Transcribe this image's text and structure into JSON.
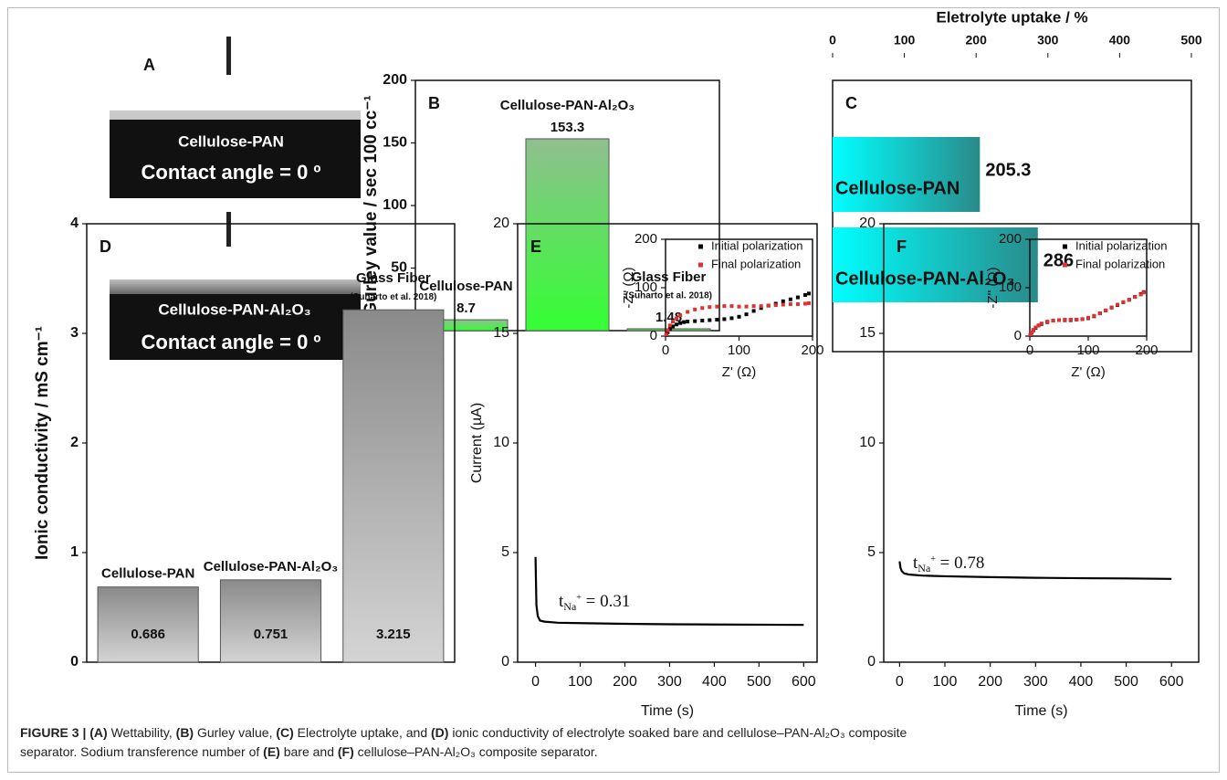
{
  "photo_panel": {
    "label": "A",
    "images": [
      {
        "title": "Cellulose-PAN",
        "subtitle": "Contact angle = 0 º"
      },
      {
        "title": "Cellulose-PAN-Al₂O₃",
        "subtitle": "Contact angle = 0 º"
      }
    ]
  },
  "chart_data": [
    {
      "type": "bar",
      "panel_label": "B",
      "ylabel": "Gurley value / sec 100 cc⁻¹",
      "categories": [
        [
          "Cellulose-PAN"
        ],
        [
          "Cellulose-PAN-Al₂O₃"
        ],
        [
          "Glass Fiber",
          "(Suharto et al. 2018)"
        ]
      ],
      "values": [
        8.7,
        153.3,
        1.48
      ],
      "ylim": [
        0,
        200
      ],
      "yticks": [
        0,
        50,
        100,
        150,
        200
      ],
      "gradient": [
        "#8fbf8f",
        "#33ff33"
      ]
    },
    {
      "type": "hbar",
      "panel_label": "C",
      "xlabel": "Eletrolyte uptake / %",
      "categories": [
        "Cellulose-PAN",
        "Cellulose-PAN-Al₂O₃"
      ],
      "values": [
        205.3,
        286
      ],
      "xlim": [
        0,
        500
      ],
      "xticks": [
        0,
        100,
        200,
        300,
        400,
        500
      ],
      "gradient": [
        "#00ffff",
        "#2a8a8a"
      ]
    },
    {
      "type": "bar",
      "panel_label": "D",
      "ylabel": "Ionic conductivity / mS cm⁻¹",
      "categories": [
        [
          "Cellulose-PAN"
        ],
        [
          "Cellulose-PAN-Al₂O₃"
        ],
        [
          "Glass Fiber",
          "(Suharto et al. 2018)"
        ]
      ],
      "values": [
        0.686,
        0.751,
        3.215
      ],
      "ylim": [
        0,
        4
      ],
      "yticks": [
        0,
        1,
        2,
        3,
        4
      ],
      "gradient": [
        "#8a8a8a",
        "#d4d4d4"
      ]
    },
    {
      "type": "line",
      "panel_label": "E",
      "xlabel": "Time (s)",
      "ylabel": "Current (µA)",
      "x": [
        0,
        2,
        5,
        10,
        20,
        50,
        100,
        200,
        300,
        400,
        500,
        600
      ],
      "series": [
        {
          "color": "#000000",
          "values": [
            4.8,
            2.6,
            2.1,
            1.9,
            1.85,
            1.8,
            1.78,
            1.75,
            1.73,
            1.72,
            1.71,
            1.7
          ]
        }
      ],
      "xlim": [
        -40,
        630
      ],
      "xticks": [
        0,
        100,
        200,
        300,
        400,
        500,
        600
      ],
      "ylim": [
        0,
        20
      ],
      "yticks": [
        0,
        5,
        10,
        15,
        20
      ],
      "annotation": [
        "t",
        "Na",
        "+",
        " = 0.31"
      ],
      "inset": {
        "type": "scatter",
        "xlabel": "Z' (Ω)",
        "ylabel": "-Z'' (Ω)",
        "xlim": [
          0,
          200
        ],
        "ylim": [
          0,
          200
        ],
        "xticks": [
          0,
          100,
          200
        ],
        "yticks": [
          0,
          100,
          200
        ],
        "series": [
          {
            "name": "Initial polarization",
            "color": "#000000",
            "x": [
              1,
              3,
              6,
              10,
              15,
              20,
              25,
              30,
              40,
              50,
              60,
              70,
              80,
              90,
              100,
              110,
              120,
              130,
              140,
              150,
              160,
              170,
              180,
              190,
              195
            ],
            "values": [
              2,
              8,
              15,
              20,
              24,
              27,
              29,
              30,
              31,
              32,
              33,
              34,
              35,
              37,
              40,
              45,
              52,
              58,
              63,
              67,
              72,
              76,
              80,
              85,
              88
            ]
          },
          {
            "name": "Final polarization",
            "color": "#e03030",
            "x": [
              1,
              3,
              6,
              10,
              15,
              20,
              30,
              40,
              50,
              60,
              70,
              80,
              90,
              100,
              110,
              120,
              130,
              140,
              150,
              160,
              170,
              180,
              190,
              195
            ],
            "values": [
              3,
              12,
              22,
              30,
              37,
              43,
              50,
              55,
              58,
              60,
              61,
              62,
              62,
              61,
              61,
              62,
              62,
              63,
              64,
              65,
              66,
              66,
              67,
              68
            ]
          }
        ]
      }
    },
    {
      "type": "line",
      "panel_label": "F",
      "xlabel": "Time (s)",
      "x": [
        0,
        2,
        5,
        10,
        20,
        50,
        100,
        200,
        300,
        400,
        500,
        600
      ],
      "series": [
        {
          "color": "#000000",
          "values": [
            4.6,
            4.3,
            4.15,
            4.05,
            4.0,
            3.95,
            3.92,
            3.88,
            3.85,
            3.83,
            3.82,
            3.8
          ]
        }
      ],
      "xlim": [
        -35,
        660
      ],
      "xticks": [
        0,
        100,
        200,
        300,
        400,
        500,
        600
      ],
      "ylim": [
        0,
        20
      ],
      "yticks": [
        0,
        5,
        10,
        15,
        20
      ],
      "annotation": [
        "t",
        "Na",
        "+",
        " = 0.78"
      ],
      "inset": {
        "type": "scatter",
        "xlabel": "Z' (Ω)",
        "ylabel": "-Z'' (Ω)",
        "xlim": [
          0,
          200
        ],
        "ylim": [
          0,
          200
        ],
        "xticks": [
          0,
          100,
          200
        ],
        "yticks": [
          0,
          100,
          200
        ],
        "series": [
          {
            "name": "Initial polarization",
            "color": "#000000",
            "x": [
              1,
              3,
              6,
              10,
              15,
              20,
              30,
              40,
              50,
              60,
              70,
              80,
              90,
              100,
              110,
              120,
              130,
              140,
              150,
              160,
              170,
              180,
              190,
              195
            ],
            "values": [
              2,
              7,
              12,
              17,
              22,
              25,
              29,
              32,
              33,
              33,
              33,
              34,
              35,
              37,
              41,
              47,
              53,
              59,
              64,
              70,
              75,
              81,
              87,
              91
            ]
          },
          {
            "name": "Final polarization",
            "color": "#e03030",
            "x": [
              1,
              3,
              6,
              10,
              15,
              20,
              30,
              40,
              50,
              60,
              70,
              80,
              90,
              100,
              110,
              120,
              130,
              140,
              150,
              160,
              170,
              180,
              190,
              195
            ],
            "values": [
              3,
              8,
              13,
              18,
              22,
              26,
              30,
              32,
              33,
              34,
              34,
              34,
              35,
              38,
              42,
              47,
              53,
              59,
              65,
              70,
              75,
              81,
              86,
              90
            ]
          }
        ]
      }
    }
  ],
  "caption": {
    "lines": [
      [
        {
          "text": "FIGURE 3 | (A)",
          "bold": true
        },
        {
          "text": " Wettability, ",
          "bold": false
        },
        {
          "text": "(B)",
          "bold": true
        },
        {
          "text": " Gurley value, ",
          "bold": false
        },
        {
          "text": "(C)",
          "bold": true
        },
        {
          "text": " Electrolyte uptake, and ",
          "bold": false
        },
        {
          "text": "(D)",
          "bold": true
        },
        {
          "text": " ionic conductivity of electrolyte soaked bare and cellulose–PAN-Al₂O₃ composite",
          "bold": false
        }
      ],
      [
        {
          "text": "separator. Sodium transference number of ",
          "bold": false
        },
        {
          "text": "(E)",
          "bold": true
        },
        {
          "text": " bare and ",
          "bold": false
        },
        {
          "text": "(F)",
          "bold": true
        },
        {
          "text": " cellulose–PAN-Al₂O₃ composite separator.",
          "bold": false
        }
      ]
    ]
  }
}
